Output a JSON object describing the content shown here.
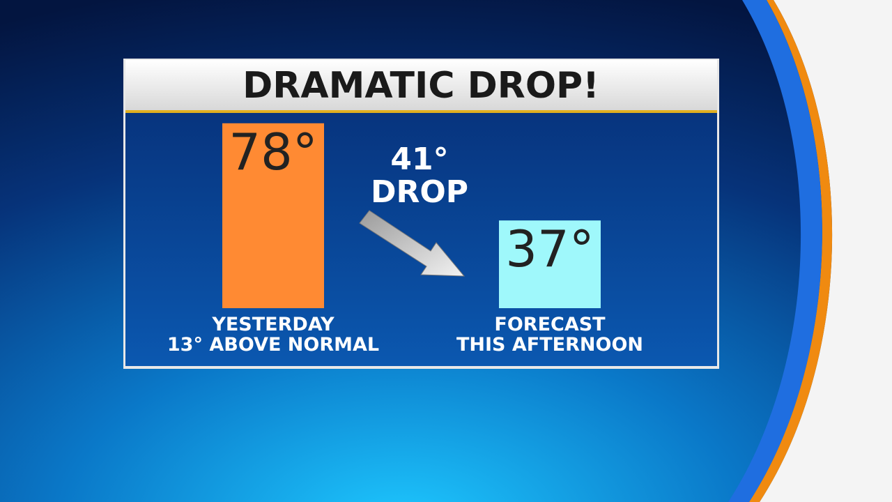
{
  "chart_data": {
    "type": "bar",
    "title": "DRAMATIC DROP!",
    "categories": [
      "YESTERDAY",
      "FORECAST"
    ],
    "category_notes": [
      "13° ABOVE NORMAL",
      "THIS AFTERNOON"
    ],
    "values": [
      78,
      37
    ],
    "value_labels": [
      "78°",
      "37°"
    ],
    "colors": [
      "#ff8a33",
      "#9ff8fb"
    ],
    "annotation": [
      "41°",
      "DROP"
    ]
  }
}
